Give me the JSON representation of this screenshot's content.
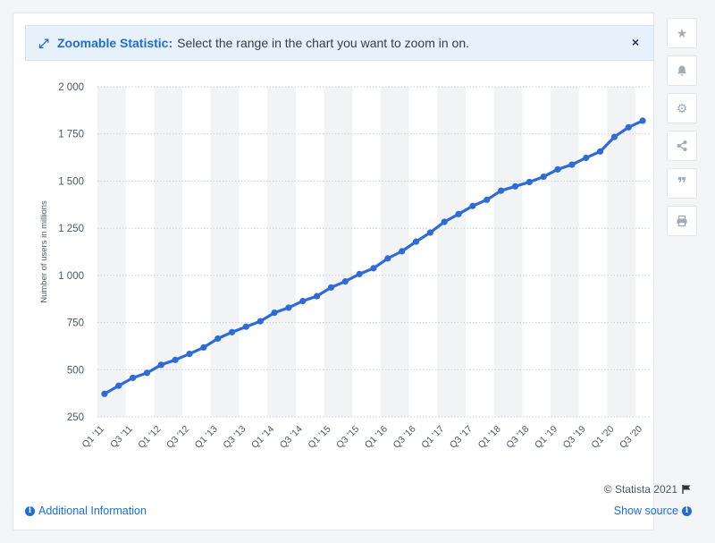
{
  "banner": {
    "label": "Zoomable Statistic:",
    "text": "Select the range in the chart you want to zoom in on.",
    "close_glyph": "×",
    "expand_glyph": "⤢"
  },
  "sidebar": {
    "icons": [
      "star-icon",
      "bell-icon",
      "gear-icon",
      "share-icon",
      "quote-icon",
      "print-icon"
    ],
    "glyphs": [
      "★",
      "🔔",
      "⚙",
      "⋘",
      "❞",
      "⎙"
    ]
  },
  "footer": {
    "copyright": "© Statista 2021",
    "additional_info": "Additional Information",
    "show_source": "Show source"
  },
  "colors": {
    "line": "#2f6bd7",
    "band": "#f2f3f5",
    "grid": "#c9ced4",
    "accent": "#1f6dd6"
  },
  "chart_data": {
    "type": "line",
    "ylabel": "Number of users in millions",
    "xlabel": "",
    "ylim": [
      250,
      2000
    ],
    "yticks": [
      250,
      500,
      750,
      1000,
      1250,
      1500,
      1750,
      2000
    ],
    "ytick_labels": [
      "250",
      "500",
      "750",
      "1 000",
      "1 250",
      "1 500",
      "1 750",
      "2 000"
    ],
    "categories": [
      "Q1 '11",
      "Q2 '11",
      "Q3 '11",
      "Q4 '11",
      "Q1 '12",
      "Q2 '12",
      "Q3 '12",
      "Q4 '12",
      "Q1 '13",
      "Q2 '13",
      "Q3 '13",
      "Q4 '13",
      "Q1 '14",
      "Q2 '14",
      "Q3 '14",
      "Q4 '14",
      "Q1 '15",
      "Q2 '15",
      "Q3 '15",
      "Q4 '15",
      "Q1 '16",
      "Q2 '16",
      "Q3 '16",
      "Q4 '16",
      "Q1 '17",
      "Q2 '17",
      "Q3 '17",
      "Q4 '17",
      "Q1 '18",
      "Q2 '18",
      "Q3 '18",
      "Q4 '18",
      "Q1 '19",
      "Q2 '19",
      "Q3 '19",
      "Q4 '19",
      "Q1 '20",
      "Q2 '20",
      "Q3 '20"
    ],
    "xtick_labels": [
      "Q1 '11",
      "Q3 '11",
      "Q1 '12",
      "Q3 '12",
      "Q1 '13",
      "Q3 '13",
      "Q1 '14",
      "Q3 '14",
      "Q1 '15",
      "Q3 '15",
      "Q1 '16",
      "Q3 '16",
      "Q1 '17",
      "Q3 '17",
      "Q1 '18",
      "Q3 '18",
      "Q1 '19",
      "Q3 '19",
      "Q1 '20",
      "Q3 '20"
    ],
    "series": [
      {
        "values": [
          372,
          415,
          457,
          483,
          526,
          552,
          584,
          618,
          665,
          699,
          728,
          757,
          802,
          829,
          864,
          890,
          936,
          968,
          1007,
          1038,
          1090,
          1128,
          1179,
          1227,
          1284,
          1325,
          1368,
          1401,
          1449,
          1472,
          1495,
          1523,
          1562,
          1587,
          1623,
          1657,
          1734,
          1785,
          1820
        ]
      }
    ],
    "grid": true,
    "alternating_bands": true
  }
}
